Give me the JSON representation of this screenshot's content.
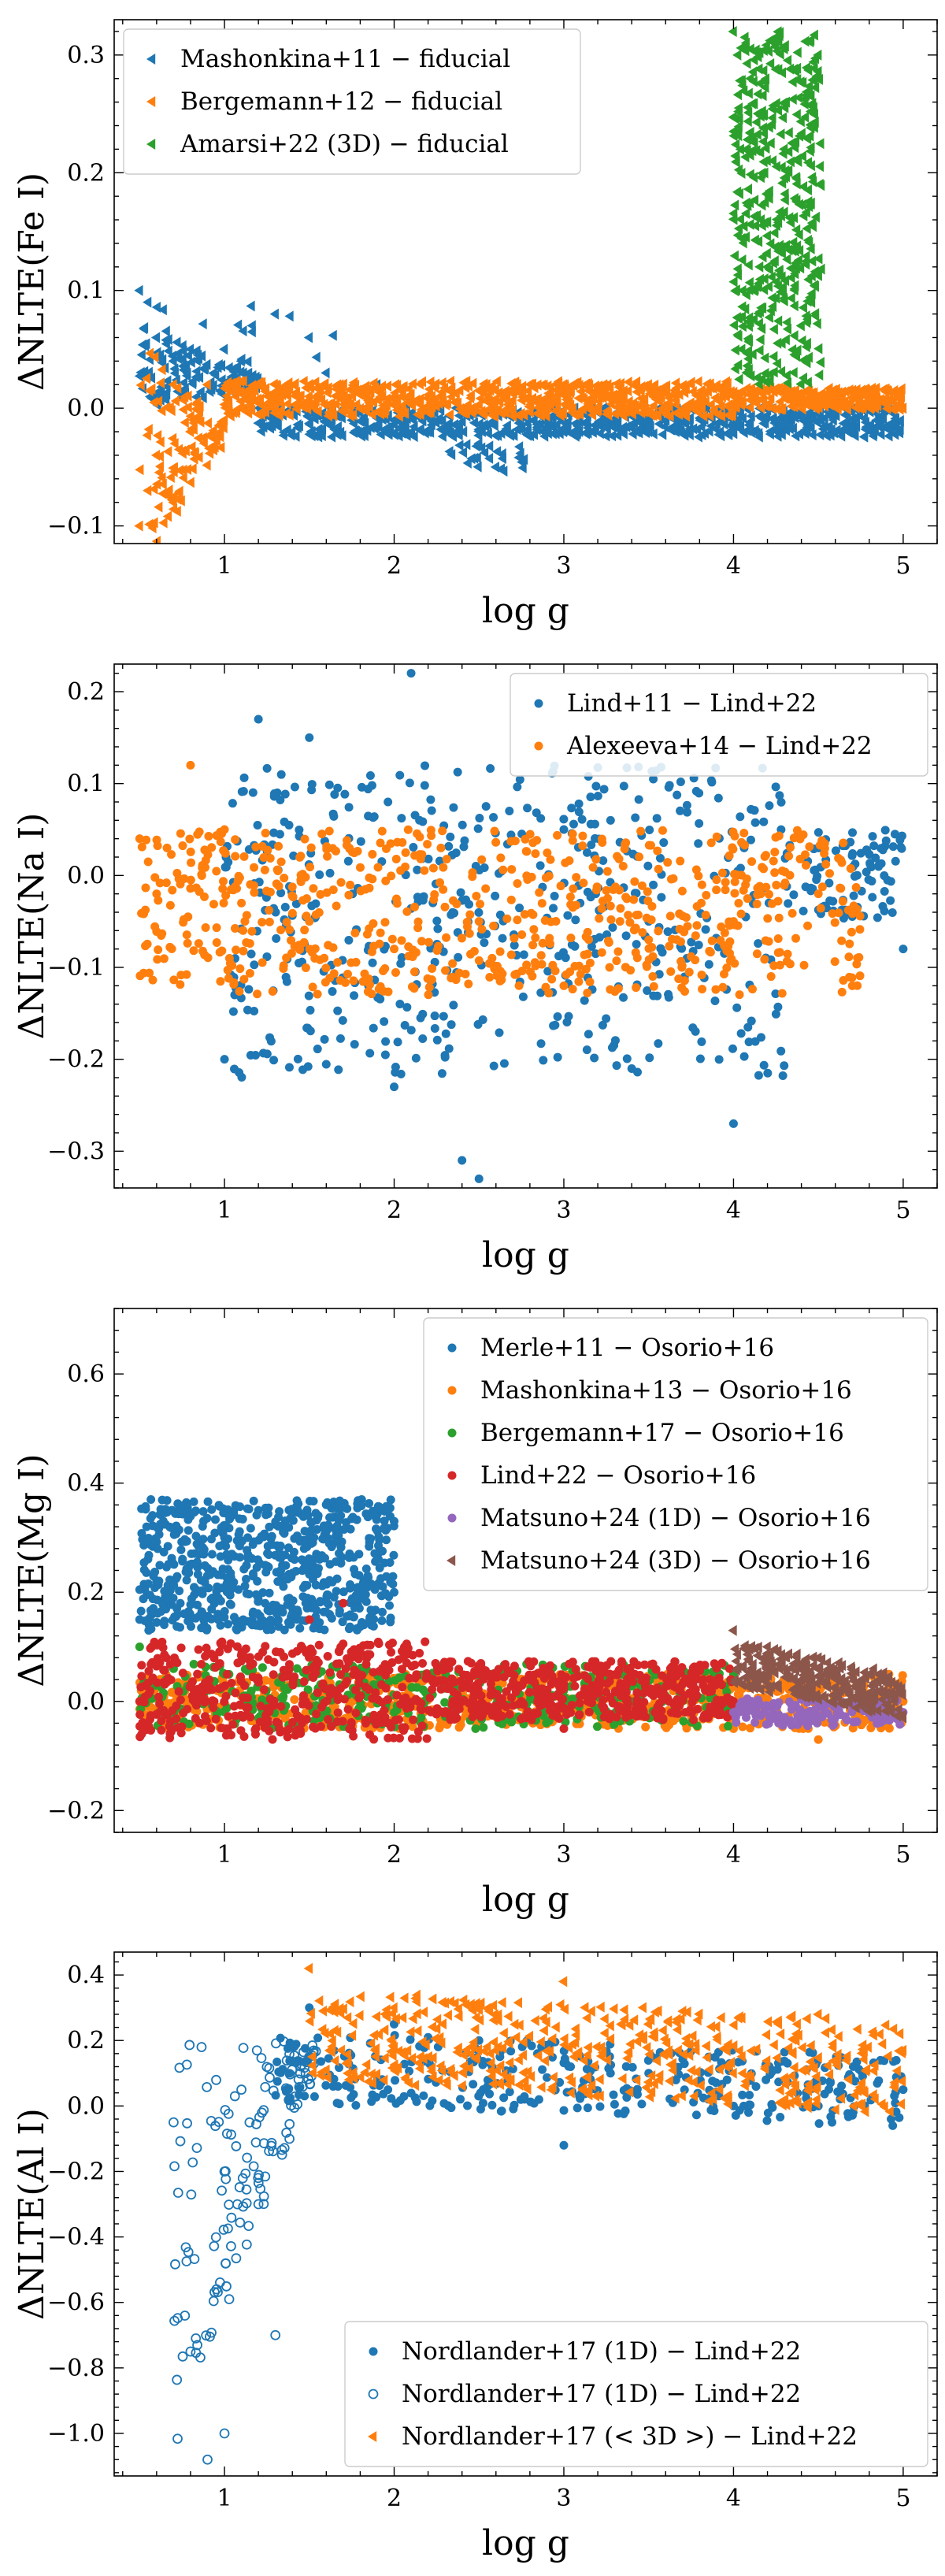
{
  "chart_data": [
    {
      "type": "scatter",
      "id": "fe",
      "ylabel": "ΔNLTE(Fe I)",
      "xlabel": "log g",
      "xlim": [
        0.35,
        5.2
      ],
      "ylim": [
        -0.115,
        0.33
      ],
      "xticks": [
        1,
        2,
        3,
        4,
        5
      ],
      "yticks": [
        -0.1,
        0.0,
        0.1,
        0.2,
        0.3
      ],
      "ytick_labels": [
        "−0.1",
        "0.0",
        "0.1",
        "0.2",
        "0.3"
      ],
      "legend_position": "upper-left",
      "series": [
        {
          "name": "Mashonkina+11 − fiducial",
          "color": "#1f77b4",
          "marker": "triangle-left",
          "filled": true,
          "samples": [
            [
              0.5,
              0.1
            ],
            [
              0.55,
              0.09
            ],
            [
              0.6,
              0.06
            ],
            [
              0.7,
              0.04
            ],
            [
              0.8,
              0.05
            ],
            [
              1.0,
              0.05
            ],
            [
              1.1,
              0.04
            ],
            [
              1.3,
              0.08
            ],
            [
              1.5,
              0.06
            ],
            [
              1.6,
              0.03
            ],
            [
              1.9,
              0.02
            ],
            [
              2.0,
              -0.01
            ],
            [
              2.2,
              -0.02
            ],
            [
              2.5,
              -0.03
            ],
            [
              2.6,
              -0.05
            ],
            [
              2.9,
              -0.02
            ],
            [
              3.0,
              -0.02
            ],
            [
              3.5,
              -0.02
            ],
            [
              4.0,
              -0.01
            ],
            [
              4.5,
              -0.005
            ],
            [
              5.0,
              0.0
            ]
          ]
        },
        {
          "name": "Bergemann+12 − fiducial",
          "color": "#ff7f0e",
          "marker": "triangle-left",
          "filled": true,
          "samples": [
            [
              0.5,
              -0.1
            ],
            [
              0.55,
              -0.07
            ],
            [
              0.6,
              -0.04
            ],
            [
              0.7,
              -0.08
            ],
            [
              0.8,
              -0.02
            ],
            [
              0.9,
              0.02
            ],
            [
              1.0,
              -0.01
            ],
            [
              1.5,
              0.01
            ],
            [
              2.0,
              0.01
            ],
            [
              2.5,
              0.015
            ],
            [
              3.0,
              0.02
            ],
            [
              3.5,
              0.02
            ],
            [
              4.0,
              0.01
            ],
            [
              4.5,
              0.005
            ],
            [
              5.0,
              0.0
            ]
          ]
        },
        {
          "name": "Amarsi+22 (3D) − fiducial",
          "color": "#2ca02c",
          "marker": "triangle-left",
          "filled": true,
          "samples": [
            [
              4.0,
              0.32
            ],
            [
              4.05,
              0.05
            ],
            [
              4.1,
              0.28
            ],
            [
              4.2,
              0.12
            ],
            [
              4.3,
              0.22
            ],
            [
              4.4,
              0.07
            ],
            [
              4.5,
              0.3
            ]
          ]
        }
      ]
    },
    {
      "type": "scatter",
      "id": "na",
      "ylabel": "ΔNLTE(Na I)",
      "xlabel": "log g",
      "xlim": [
        0.35,
        5.2
      ],
      "ylim": [
        -0.34,
        0.23
      ],
      "xticks": [
        1,
        2,
        3,
        4,
        5
      ],
      "yticks": [
        -0.3,
        -0.2,
        -0.1,
        0.0,
        0.1,
        0.2
      ],
      "ytick_labels": [
        "−0.3",
        "−0.2",
        "−0.1",
        "0.0",
        "0.1",
        "0.2"
      ],
      "legend_position": "upper-right",
      "series": [
        {
          "name": "Lind+11 − Lind+22",
          "color": "#1f77b4",
          "marker": "circle",
          "filled": true,
          "samples": [
            [
              1.0,
              -0.2
            ],
            [
              1.2,
              0.17
            ],
            [
              1.5,
              0.15
            ],
            [
              2.0,
              -0.23
            ],
            [
              2.1,
              0.22
            ],
            [
              2.4,
              -0.31
            ],
            [
              2.5,
              -0.33
            ],
            [
              3.0,
              0.05
            ],
            [
              3.5,
              -0.05
            ],
            [
              4.0,
              -0.27
            ],
            [
              4.5,
              0.03
            ],
            [
              5.0,
              -0.08
            ]
          ]
        },
        {
          "name": "Alexeeva+14 − Lind+22",
          "color": "#ff7f0e",
          "marker": "circle",
          "filled": true,
          "samples": [
            [
              0.5,
              0.04
            ],
            [
              0.6,
              -0.02
            ],
            [
              0.8,
              0.12
            ],
            [
              1.0,
              0.05
            ],
            [
              1.5,
              -0.05
            ],
            [
              2.0,
              -0.08
            ],
            [
              2.5,
              -0.05
            ],
            [
              3.0,
              -0.12
            ],
            [
              3.5,
              -0.07
            ],
            [
              4.0,
              -0.05
            ],
            [
              4.5,
              -0.02
            ],
            [
              4.7,
              -0.12
            ]
          ]
        }
      ]
    },
    {
      "type": "scatter",
      "id": "mg",
      "ylabel": "ΔNLTE(Mg I)",
      "xlabel": "log g",
      "xlim": [
        0.35,
        5.2
      ],
      "ylim": [
        -0.24,
        0.72
      ],
      "xticks": [
        1,
        2,
        3,
        4,
        5
      ],
      "yticks": [
        -0.2,
        0.0,
        0.2,
        0.4,
        0.6
      ],
      "ytick_labels": [
        "−0.2",
        "0.0",
        "0.2",
        "0.4",
        "0.6"
      ],
      "legend_position": "upper-right",
      "series": [
        {
          "name": "Merle+11 − Osorio+16",
          "color": "#1f77b4",
          "marker": "circle",
          "filled": true,
          "samples": [
            [
              0.5,
              0.15
            ],
            [
              0.6,
              0.22
            ],
            [
              1.0,
              0.3
            ],
            [
              1.2,
              0.35
            ],
            [
              1.5,
              0.25
            ],
            [
              2.0,
              0.2
            ],
            [
              2.0,
              0.33
            ]
          ]
        },
        {
          "name": "Mashonkina+13 − Osorio+16",
          "color": "#ff7f0e",
          "marker": "circle",
          "filled": true,
          "samples": [
            [
              0.5,
              0.0
            ],
            [
              1.5,
              0.0
            ],
            [
              2.5,
              0.0
            ],
            [
              3.5,
              -0.01
            ],
            [
              4.0,
              -0.05
            ],
            [
              4.5,
              -0.07
            ],
            [
              5.0,
              0.0
            ]
          ]
        },
        {
          "name": "Bergemann+17 − Osorio+16",
          "color": "#2ca02c",
          "marker": "circle",
          "filled": true,
          "samples": [
            [
              0.5,
              0.1
            ],
            [
              0.7,
              0.06
            ],
            [
              1.0,
              0.05
            ],
            [
              2.0,
              -0.02
            ],
            [
              3.0,
              0.02
            ],
            [
              4.0,
              0.05
            ]
          ]
        },
        {
          "name": "Lind+22 − Osorio+16",
          "color": "#d62728",
          "marker": "circle",
          "filled": true,
          "samples": [
            [
              0.5,
              0.0
            ],
            [
              1.5,
              0.15
            ],
            [
              1.7,
              0.18
            ],
            [
              2.5,
              0.05
            ],
            [
              3.0,
              -0.05
            ],
            [
              3.5,
              0.02
            ],
            [
              4.0,
              0.0
            ]
          ]
        },
        {
          "name": "Matsuno+24 (1D) − Osorio+16",
          "color": "#9467bd",
          "marker": "circle",
          "filled": true,
          "samples": [
            [
              4.0,
              -0.02
            ],
            [
              4.3,
              -0.03
            ],
            [
              4.6,
              -0.01
            ],
            [
              5.0,
              -0.02
            ]
          ]
        },
        {
          "name": "Matsuno+24 (3D) − Osorio+16",
          "color": "#8c564b",
          "marker": "triangle-left",
          "filled": true,
          "samples": [
            [
              4.0,
              0.13
            ],
            [
              4.2,
              0.1
            ],
            [
              4.5,
              0.08
            ],
            [
              4.8,
              0.05
            ],
            [
              5.0,
              -0.03
            ]
          ]
        }
      ]
    },
    {
      "type": "scatter",
      "id": "al",
      "ylabel": "ΔNLTE(Al I)",
      "xlabel": "log g",
      "xlim": [
        0.35,
        5.2
      ],
      "ylim": [
        -1.13,
        0.47
      ],
      "xticks": [
        1,
        2,
        3,
        4,
        5
      ],
      "yticks": [
        -1.0,
        -0.8,
        -0.6,
        -0.4,
        -0.2,
        0.0,
        0.2,
        0.4
      ],
      "ytick_labels": [
        "−1.0",
        "−0.8",
        "−0.6",
        "−0.4",
        "−0.2",
        "0.0",
        "0.2",
        "0.4"
      ],
      "legend_position": "lower-right",
      "series": [
        {
          "name": "Nordlander+17 (1D) − Lind+22",
          "color": "#1f77b4",
          "marker": "circle",
          "filled": true,
          "samples": [
            [
              1.5,
              0.3
            ],
            [
              2.0,
              0.25
            ],
            [
              2.5,
              0.2
            ],
            [
              3.0,
              -0.12
            ],
            [
              3.5,
              0.1
            ],
            [
              4.0,
              0.0
            ],
            [
              4.5,
              0.0
            ],
            [
              5.0,
              0.05
            ]
          ]
        },
        {
          "name": "Nordlander+17 (1D) − Lind+22",
          "color": "#1f77b4",
          "marker": "circle",
          "filled": false,
          "samples": [
            [
              0.7,
              -0.05
            ],
            [
              0.8,
              -0.75
            ],
            [
              0.9,
              -1.08
            ],
            [
              1.0,
              -0.2
            ],
            [
              1.0,
              -1.0
            ],
            [
              1.1,
              0.05
            ],
            [
              1.2,
              -0.3
            ],
            [
              1.3,
              -0.7
            ],
            [
              1.5,
              0.15
            ]
          ]
        },
        {
          "name": "Nordlander+17 (< 3D >) − Lind+22",
          "color": "#ff7f0e",
          "marker": "triangle-left",
          "filled": true,
          "samples": [
            [
              1.5,
              0.42
            ],
            [
              2.0,
              0.3
            ],
            [
              2.5,
              0.3
            ],
            [
              3.0,
              0.38
            ],
            [
              3.5,
              0.25
            ],
            [
              4.0,
              0.1
            ],
            [
              4.5,
              0.28
            ],
            [
              5.0,
              0.17
            ]
          ]
        }
      ]
    }
  ]
}
